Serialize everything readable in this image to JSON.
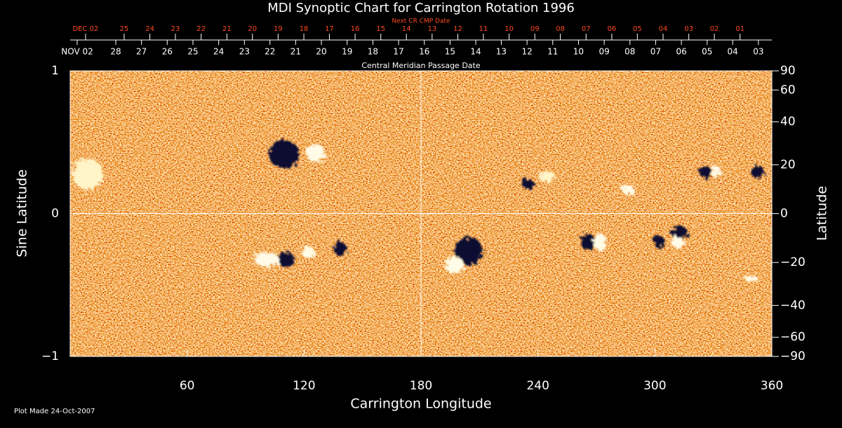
{
  "chart_data": {
    "type": "heatmap",
    "title": "MDI Synoptic Chart for Carrington Rotation 1996",
    "xlabel": "Carrington Longitude",
    "ylabel": "Sine Latitude",
    "y2label": "Latitude",
    "xlim": [
      0,
      360
    ],
    "xticks": [
      60,
      120,
      180,
      240,
      300,
      360
    ],
    "ylim": [
      -1,
      1
    ],
    "yticks": [
      {
        "value": -1,
        "label": "−1"
      },
      0,
      1
    ],
    "y2lim": [
      -90,
      90
    ],
    "y2scale": "sine",
    "y2ticks": [
      90,
      60,
      40,
      20,
      0,
      {
        "value": -20,
        "label": "−20"
      },
      {
        "value": -40,
        "label": "−40"
      },
      {
        "value": -60,
        "label": "−60"
      },
      {
        "value": -90,
        "label": "−90"
      }
    ],
    "reference_lines": {
      "x": 180,
      "y": 0
    },
    "top_axes": [
      {
        "title": "Next CR CMP Date",
        "color": "#ff4a22",
        "ticks": [
          {
            "value": 7.9,
            "label": "DEC 02"
          },
          {
            "value": 27.7,
            "label": "25"
          },
          {
            "value": 40.9,
            "label": "24"
          },
          {
            "value": 54.0,
            "label": "23"
          },
          {
            "value": 67.2,
            "label": "22"
          },
          {
            "value": 80.4,
            "label": "21"
          },
          {
            "value": 93.5,
            "label": "20"
          },
          {
            "value": 106.7,
            "label": "19"
          },
          {
            "value": 119.9,
            "label": "18"
          },
          {
            "value": 133.0,
            "label": "17"
          },
          {
            "value": 146.2,
            "label": "16"
          },
          {
            "value": 159.4,
            "label": "15"
          },
          {
            "value": 172.5,
            "label": "14"
          },
          {
            "value": 185.7,
            "label": "13"
          },
          {
            "value": 198.9,
            "label": "12"
          },
          {
            "value": 212.0,
            "label": "11"
          },
          {
            "value": 225.2,
            "label": "10"
          },
          {
            "value": 238.4,
            "label": "09"
          },
          {
            "value": 251.5,
            "label": "08"
          },
          {
            "value": 264.7,
            "label": "07"
          },
          {
            "value": 277.9,
            "label": "06"
          },
          {
            "value": 291.0,
            "label": "05"
          },
          {
            "value": 304.2,
            "label": "04"
          },
          {
            "value": 317.4,
            "label": "03"
          },
          {
            "value": 330.5,
            "label": "02"
          },
          {
            "value": 343.7,
            "label": "01"
          }
        ]
      },
      {
        "title": "Central Meridian Passage Date",
        "color": "#ffffff",
        "ticks": [
          {
            "value": 3.6,
            "label": "NOV 02"
          },
          {
            "value": 23.4,
            "label": "28"
          },
          {
            "value": 36.6,
            "label": "27"
          },
          {
            "value": 49.8,
            "label": "26"
          },
          {
            "value": 63.0,
            "label": "25"
          },
          {
            "value": 76.2,
            "label": "24"
          },
          {
            "value": 89.4,
            "label": "23"
          },
          {
            "value": 102.5,
            "label": "22"
          },
          {
            "value": 115.7,
            "label": "21"
          },
          {
            "value": 128.9,
            "label": "20"
          },
          {
            "value": 142.1,
            "label": "19"
          },
          {
            "value": 155.3,
            "label": "18"
          },
          {
            "value": 168.5,
            "label": "17"
          },
          {
            "value": 181.7,
            "label": "16"
          },
          {
            "value": 194.9,
            "label": "15"
          },
          {
            "value": 208.1,
            "label": "14"
          },
          {
            "value": 221.2,
            "label": "13"
          },
          {
            "value": 234.4,
            "label": "12"
          },
          {
            "value": 247.6,
            "label": "11"
          },
          {
            "value": 260.8,
            "label": "10"
          },
          {
            "value": 274.0,
            "label": "09"
          },
          {
            "value": 287.2,
            "label": "08"
          },
          {
            "value": 300.4,
            "label": "07"
          },
          {
            "value": 313.6,
            "label": "06"
          },
          {
            "value": 326.8,
            "label": "05"
          },
          {
            "value": 339.9,
            "label": "04"
          },
          {
            "value": 353.1,
            "label": "03"
          }
        ]
      }
    ]
  },
  "footer": "Plot Made 24-Oct-2007"
}
